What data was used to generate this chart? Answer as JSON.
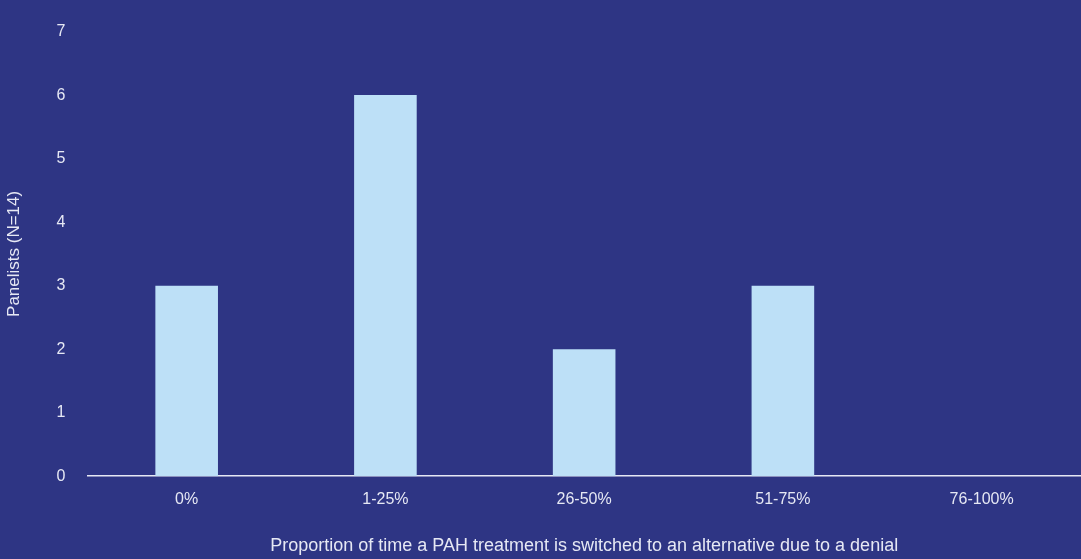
{
  "chart_data": {
    "type": "bar",
    "xlabel": "Proportion of time a PAH treatment is switched to an alternative due to a denial",
    "ylabel": "Panelists (N=14)",
    "categories": [
      "0%",
      "1-25%",
      "26-50%",
      "51-75%",
      "76-100%"
    ],
    "values": [
      3,
      6,
      2,
      3,
      0
    ],
    "color": "#bde0f7",
    "ylim": [
      0,
      7
    ],
    "yticks": [
      0,
      1,
      2,
      3,
      4,
      5,
      6,
      7
    ],
    "grid": false,
    "legend": false
  }
}
